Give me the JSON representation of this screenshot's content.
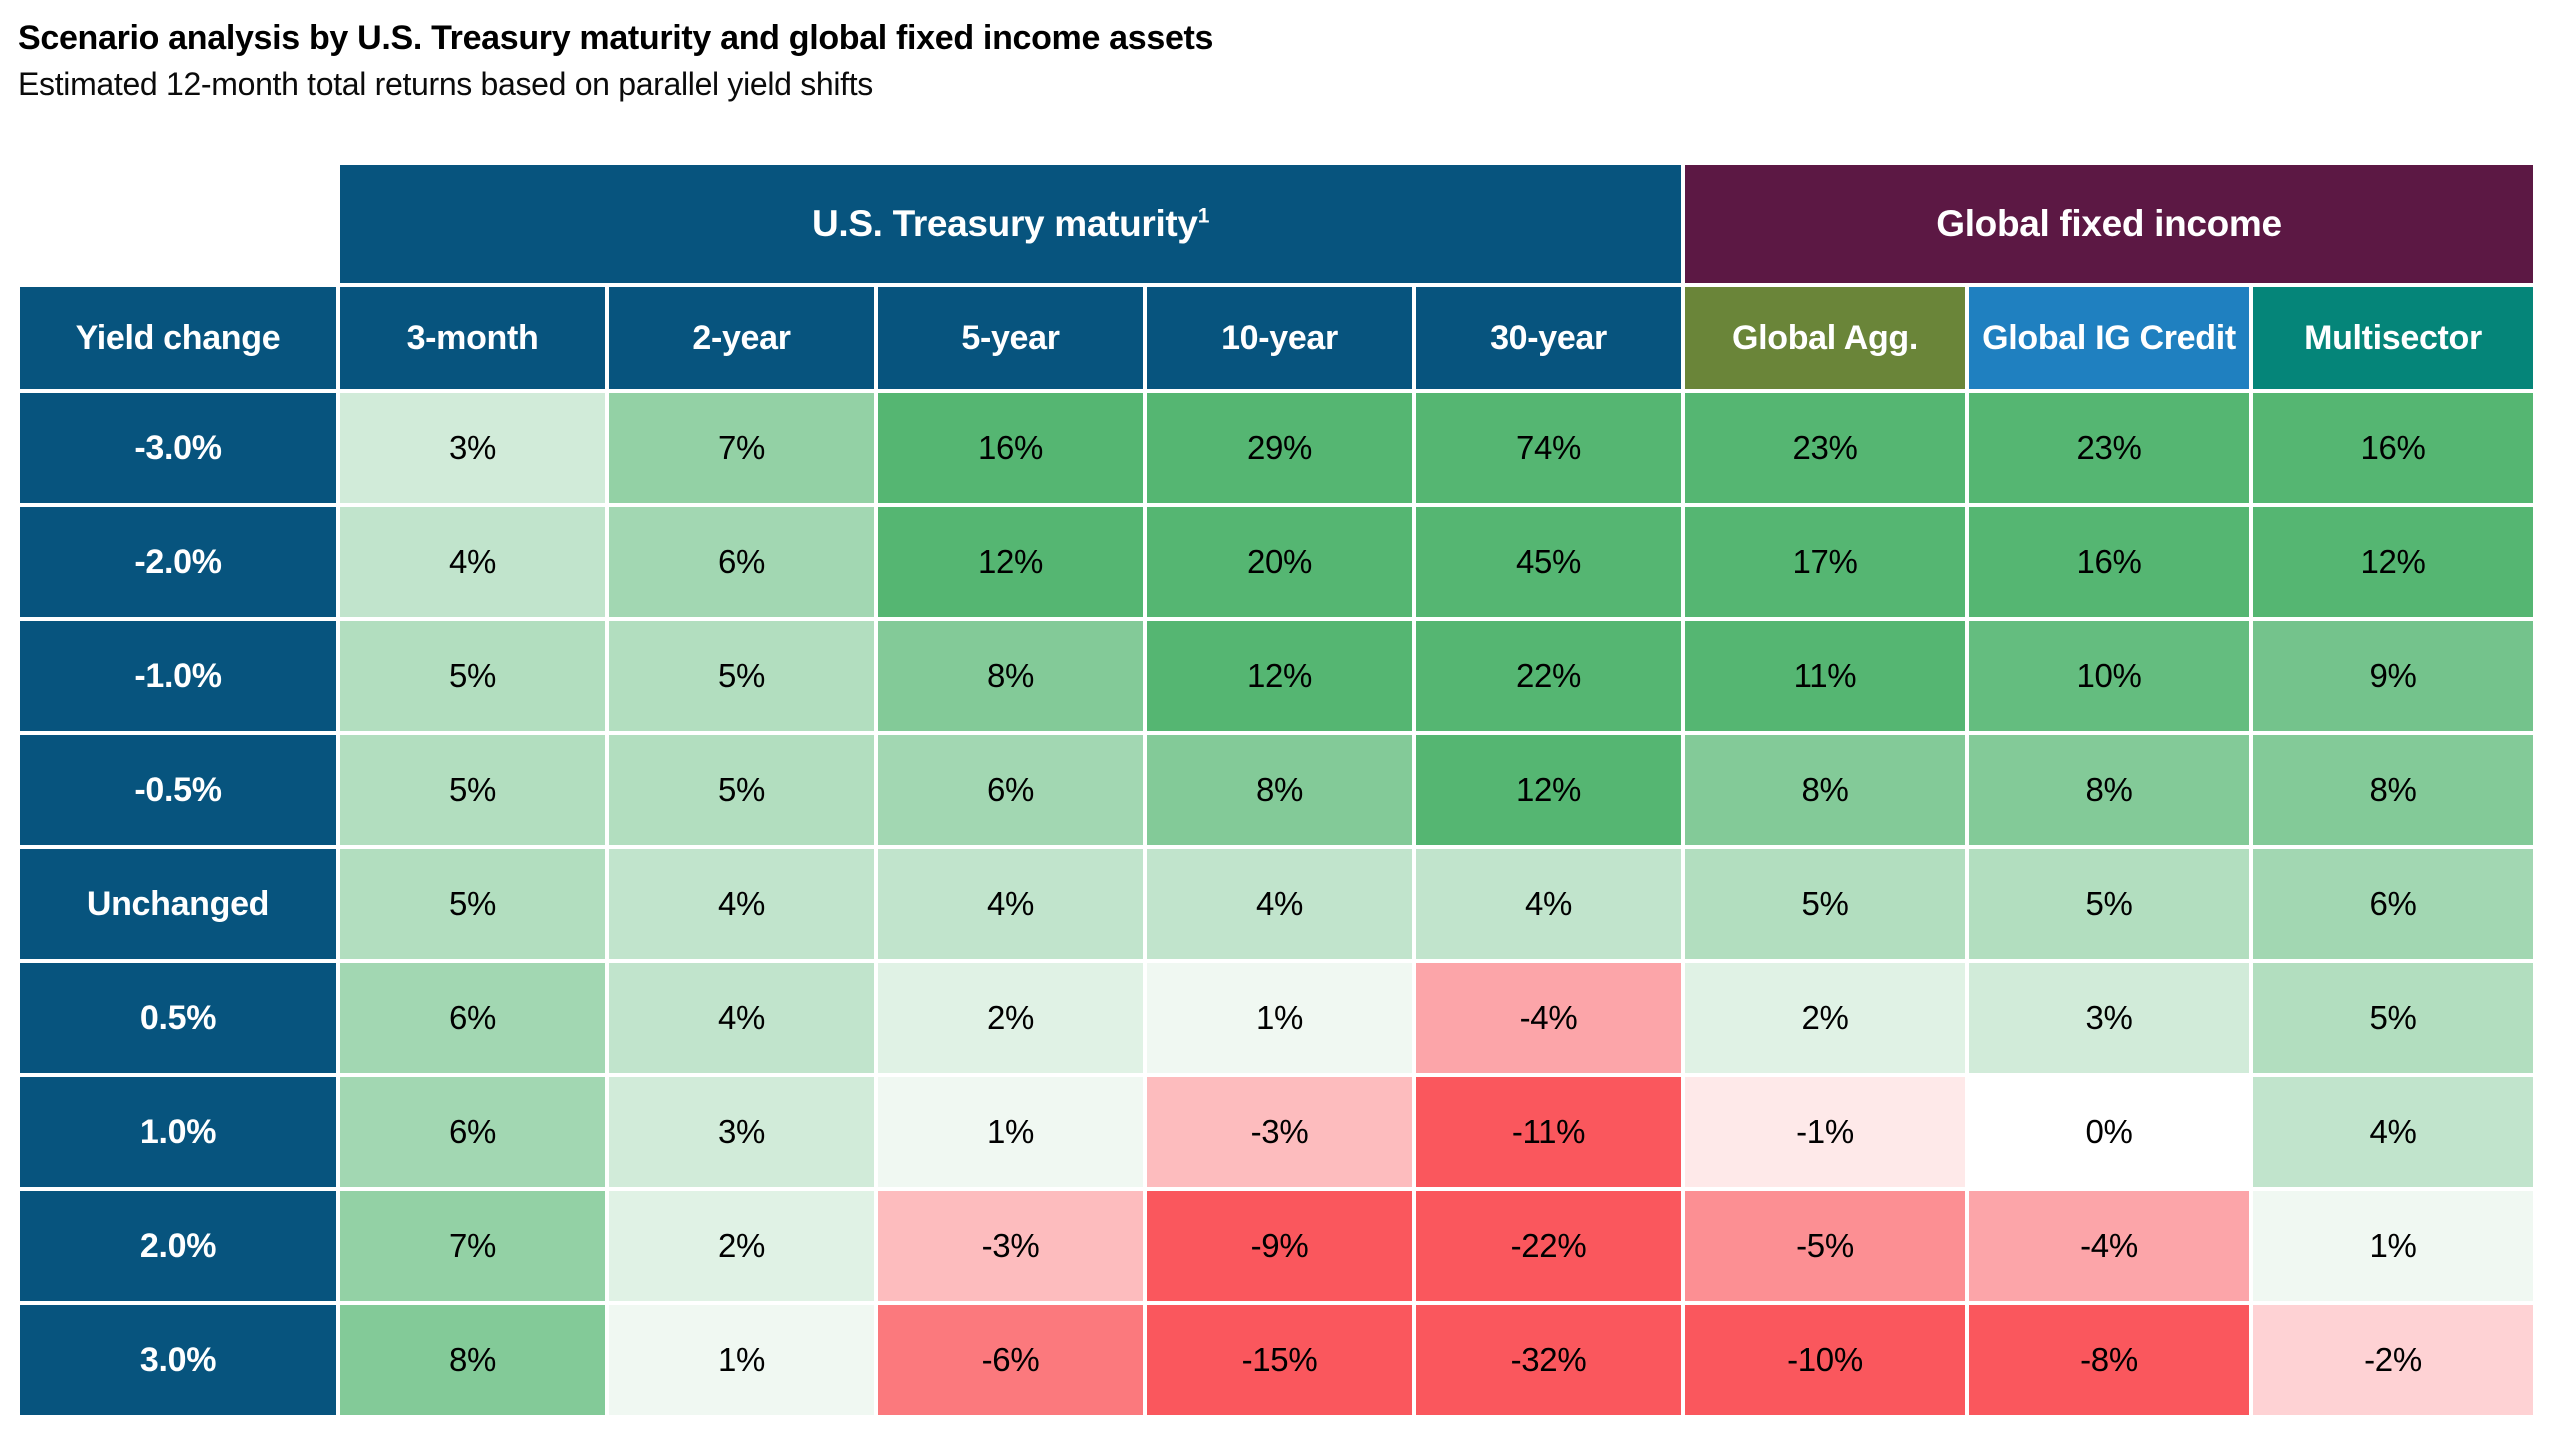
{
  "chart_data": {
    "type": "heatmap",
    "title": "Scenario analysis by U.S. Treasury maturity and global fixed income assets",
    "subtitle": "Estimated 12-month total returns based on parallel yield shifts",
    "unit": "%",
    "row_label_header": "Yield change",
    "row_header_color": "#07547E",
    "column_groups": [
      {
        "label": "U.S. Treasury maturity",
        "footnote_marker": "1",
        "color": "#07547E",
        "span": 5
      },
      {
        "label": "Global fixed income",
        "footnote_marker": "",
        "color": "#5C1844",
        "span": 3
      }
    ],
    "columns": [
      {
        "label": "3-month",
        "header_color": "#07547E"
      },
      {
        "label": "2-year",
        "header_color": "#07547E"
      },
      {
        "label": "5-year",
        "header_color": "#07547E"
      },
      {
        "label": "10-year",
        "header_color": "#07547E"
      },
      {
        "label": "30-year",
        "header_color": "#07547E"
      },
      {
        "label": "Global Agg.",
        "header_color": "#6A8539"
      },
      {
        "label": "Global IG Credit",
        "header_color": "#1F80C0"
      },
      {
        "label": "Multisector",
        "header_color": "#058579"
      }
    ],
    "rows": [
      {
        "label": "-3.0%",
        "values": [
          3,
          7,
          16,
          29,
          74,
          23,
          23,
          16
        ]
      },
      {
        "label": "-2.0%",
        "values": [
          4,
          6,
          12,
          20,
          45,
          17,
          16,
          12
        ]
      },
      {
        "label": "-1.0%",
        "values": [
          5,
          5,
          8,
          12,
          22,
          11,
          10,
          9
        ]
      },
      {
        "label": "-0.5%",
        "values": [
          5,
          5,
          6,
          8,
          12,
          8,
          8,
          8
        ]
      },
      {
        "label": "Unchanged",
        "values": [
          5,
          4,
          4,
          4,
          4,
          5,
          5,
          6
        ]
      },
      {
        "label": "0.5%",
        "values": [
          6,
          4,
          2,
          1,
          -4,
          2,
          3,
          5
        ]
      },
      {
        "label": "1.0%",
        "values": [
          6,
          3,
          1,
          -3,
          -11,
          -1,
          0,
          4
        ]
      },
      {
        "label": "2.0%",
        "values": [
          7,
          2,
          -3,
          -9,
          -22,
          -5,
          -4,
          1
        ]
      },
      {
        "label": "3.0%",
        "values": [
          8,
          1,
          -6,
          -15,
          -32,
          -10,
          -8,
          -2
        ]
      }
    ],
    "heatmap": {
      "neutral_color": "#FFFFFF",
      "positive_color": "#55B672",
      "negative_color": "#FA575D",
      "positive_clamp": 11,
      "negative_clamp": 7.5
    },
    "grid": "white-gaps",
    "legend_position": "none"
  }
}
